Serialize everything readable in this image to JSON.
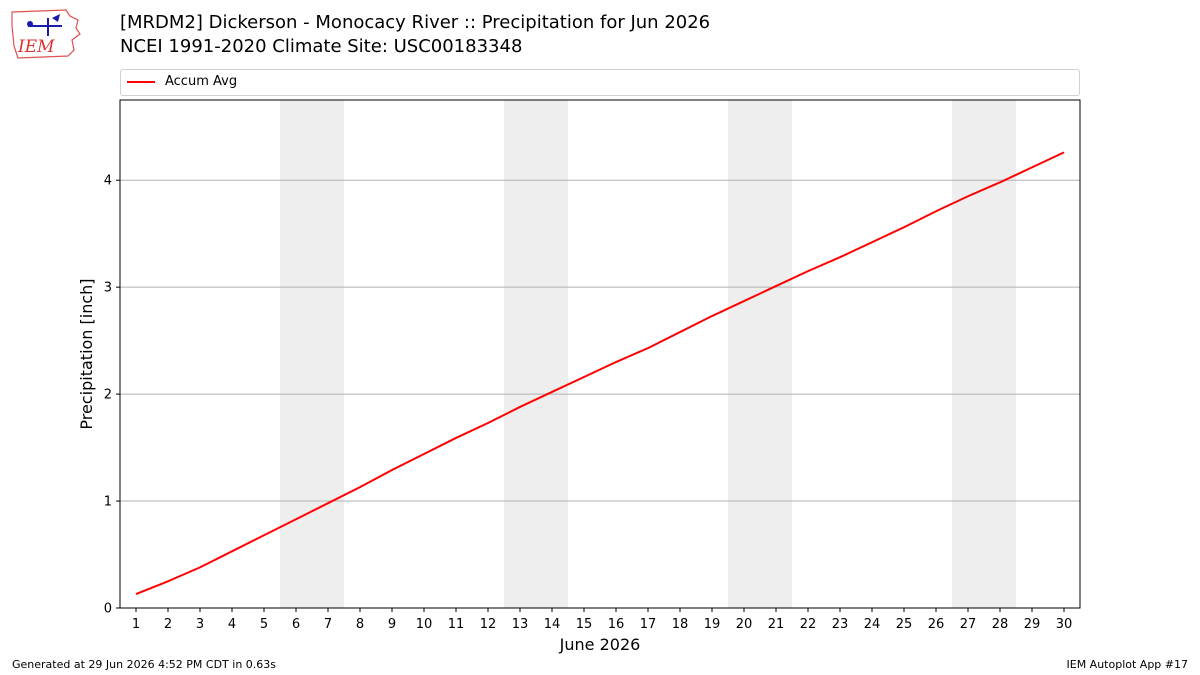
{
  "header": {
    "logo_text": "IEM",
    "title_line1": "[MRDM2] Dickerson - Monocacy River :: Precipitation for Jun 2026",
    "title_line2": "NCEI 1991-2020 Climate Site: USC00183348"
  },
  "footer": {
    "generated": "Generated at 29 Jun 2026 4:52 PM CDT in 0.63s",
    "app": "IEM Autoplot App #17"
  },
  "chart_data": {
    "type": "line",
    "title": "[MRDM2] Dickerson - Monocacy River :: Precipitation for Jun 2026",
    "subtitle": "NCEI 1991-2020 Climate Site: USC00183348",
    "xlabel": "June 2026",
    "ylabel": "Precipitation [inch]",
    "x": [
      1,
      2,
      3,
      4,
      5,
      6,
      7,
      8,
      9,
      10,
      11,
      12,
      13,
      14,
      15,
      16,
      17,
      18,
      19,
      20,
      21,
      22,
      23,
      24,
      25,
      26,
      27,
      28,
      29,
      30
    ],
    "xlim": [
      0.5,
      30.5
    ],
    "ylim": [
      0,
      4.75
    ],
    "yticks": [
      0,
      1,
      2,
      3,
      4
    ],
    "xticks": [
      1,
      2,
      3,
      4,
      5,
      6,
      7,
      8,
      9,
      10,
      11,
      12,
      13,
      14,
      15,
      16,
      17,
      18,
      19,
      20,
      21,
      22,
      23,
      24,
      25,
      26,
      27,
      28,
      29,
      30
    ],
    "grid": "y-major",
    "legend_location": "top (above plot)",
    "weekend_shading": [
      [
        6,
        7
      ],
      [
        13,
        14
      ],
      [
        20,
        21
      ],
      [
        27,
        28
      ]
    ],
    "weekend_color": "#eeeeee",
    "series": [
      {
        "name": "Accum Avg",
        "color": "#ff0000",
        "values": [
          0.13,
          0.25,
          0.38,
          0.53,
          0.68,
          0.83,
          0.98,
          1.13,
          1.29,
          1.44,
          1.59,
          1.73,
          1.88,
          2.02,
          2.16,
          2.3,
          2.43,
          2.58,
          2.73,
          2.87,
          3.01,
          3.15,
          3.28,
          3.42,
          3.56,
          3.71,
          3.85,
          3.98,
          4.12,
          4.26
        ]
      }
    ]
  }
}
